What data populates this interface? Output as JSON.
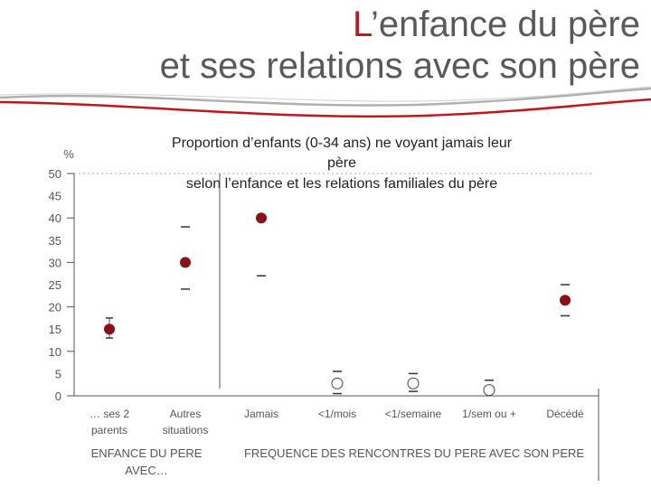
{
  "slide": {
    "title_first_letter": "L",
    "title_rest": "’enfance du père",
    "title_line2": "et ses relations avec son père"
  },
  "colors": {
    "accent": "#c0171d",
    "marker": "#8b0f14",
    "text": "#595959",
    "axis": "#555555"
  },
  "chart_data": {
    "type": "scatter",
    "title_lines": [
      "Proportion d’enfants (0-34 ans) ne voyant jamais leur",
      "père",
      "selon l’enfance et les relations familiales du père"
    ],
    "ylabel": "%",
    "ylim": [
      0,
      50
    ],
    "yticks": [
      "0",
      "5",
      "10",
      "15",
      "20",
      "25",
      "30",
      "35",
      "40",
      "45",
      "50"
    ],
    "grid": false,
    "categories": [
      "… ses 2 parents",
      "Autres situations",
      "Jamais",
      "<1/mois",
      "<1/semaine",
      "1/sem ou +",
      "Décédé"
    ],
    "category_label_lines": [
      [
        "… ses 2",
        "parents"
      ],
      [
        "Autres",
        "situations"
      ],
      [
        "Jamais"
      ],
      [
        "<1/mois"
      ],
      [
        "<1/semaine"
      ],
      [
        "1/sem ou +"
      ],
      [
        "Décédé"
      ]
    ],
    "values": [
      15,
      30,
      40,
      2.8,
      2.8,
      1.3,
      21.5
    ],
    "lower": [
      13,
      24,
      27,
      0.5,
      1,
      null,
      18
    ],
    "upper": [
      17.5,
      38,
      null,
      5.5,
      5,
      3.5,
      25
    ],
    "filled": [
      true,
      true,
      true,
      false,
      false,
      false,
      true
    ],
    "group_labels": [
      {
        "lines": [
          "ENFANCE DU PERE",
          "AVEC…"
        ]
      },
      {
        "lines": [
          "FREQUENCE DES RENCONTRES DU PERE AVEC SON PERE"
        ]
      }
    ]
  }
}
